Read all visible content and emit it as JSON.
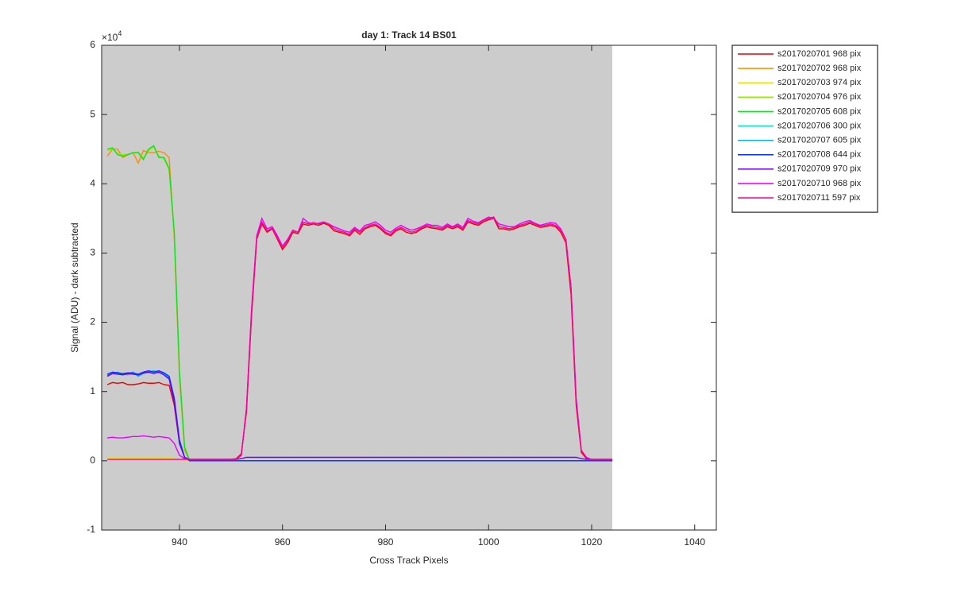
{
  "chart_data": {
    "type": "line",
    "title": "day 1: Track 14  BS01",
    "xlabel": "Cross Track Pixels",
    "ylabel": "Signal (ADU) - dark subtracted",
    "y_multiplier": {
      "base": "×10",
      "exponent": "4"
    },
    "xlim": [
      924.9,
      1044.2
    ],
    "ylim": [
      -1,
      6
    ],
    "xticks": [
      940,
      960,
      980,
      1000,
      1020,
      1040
    ],
    "yticks": [
      -1,
      0,
      1,
      2,
      3,
      4,
      5,
      6
    ],
    "legend": "northeastoutside",
    "x": [
      926,
      927,
      928,
      929,
      930,
      931,
      932,
      933,
      934,
      935,
      936,
      937,
      938,
      939,
      940,
      941,
      942,
      943,
      944,
      945,
      946,
      947,
      948,
      949,
      950,
      951,
      952,
      953,
      954,
      955,
      956,
      957,
      958,
      959,
      960,
      961,
      962,
      963,
      964,
      965,
      966,
      967,
      968,
      969,
      970,
      971,
      972,
      973,
      974,
      975,
      976,
      977,
      978,
      979,
      980,
      981,
      982,
      983,
      984,
      985,
      986,
      987,
      988,
      989,
      990,
      991,
      992,
      993,
      994,
      995,
      996,
      997,
      998,
      999,
      1000,
      1001,
      1002,
      1003,
      1004,
      1005,
      1006,
      1007,
      1008,
      1009,
      1010,
      1011,
      1012,
      1013,
      1014,
      1015,
      1016,
      1017,
      1018,
      1019,
      1020,
      1021,
      1022,
      1023,
      1024
    ],
    "series": [
      {
        "name": "s2017020701 968 pix",
        "color": "#ee0000",
        "values": [
          1.1,
          1.13,
          1.12,
          1.13,
          1.1,
          1.1,
          1.11,
          1.13,
          1.12,
          1.12,
          1.13,
          1.1,
          1.09,
          0.8,
          0.25,
          0.05,
          0.02,
          0.02,
          0.02,
          0.02,
          0.02,
          0.02,
          0.02,
          0.02,
          0.02,
          0.03,
          0.1,
          0.7,
          2.1,
          3.2,
          3.42,
          3.3,
          3.35,
          3.2,
          3.05,
          3.15,
          3.3,
          3.28,
          3.42,
          3.4,
          3.42,
          3.4,
          3.43,
          3.4,
          3.32,
          3.3,
          3.28,
          3.25,
          3.33,
          3.27,
          3.35,
          3.38,
          3.4,
          3.35,
          3.28,
          3.25,
          3.32,
          3.35,
          3.3,
          3.28,
          3.3,
          3.35,
          3.38,
          3.36,
          3.35,
          3.33,
          3.38,
          3.35,
          3.38,
          3.33,
          3.45,
          3.42,
          3.4,
          3.45,
          3.48,
          3.5,
          3.35,
          3.35,
          3.33,
          3.35,
          3.38,
          3.4,
          3.43,
          3.4,
          3.37,
          3.38,
          3.4,
          3.38,
          3.3,
          3.15,
          2.4,
          0.8,
          0.12,
          0.03,
          0.02,
          0.02,
          0.02,
          0.02,
          0.02
        ]
      },
      {
        "name": "s2017020702 968 pix",
        "color": "#ff8c00",
        "values": [
          4.4,
          4.5,
          4.5,
          4.38,
          4.42,
          4.45,
          4.3,
          4.48,
          4.45,
          4.45,
          4.47,
          4.45,
          4.38,
          3.2,
          1.2,
          0.15,
          0,
          0,
          0,
          0,
          0,
          0,
          0,
          0,
          0,
          0,
          0,
          0,
          0,
          0,
          0,
          0,
          0,
          0,
          0,
          0,
          0,
          0,
          0,
          0,
          0,
          0,
          0,
          0,
          0,
          0,
          0,
          0,
          0,
          0,
          0,
          0,
          0,
          0,
          0,
          0,
          0,
          0,
          0,
          0,
          0,
          0,
          0,
          0,
          0,
          0,
          0,
          0,
          0,
          0,
          0,
          0,
          0,
          0,
          0,
          0,
          0,
          0,
          0,
          0,
          0,
          0,
          0,
          0,
          0,
          0,
          0,
          0,
          0,
          0,
          0,
          0,
          0,
          0,
          0,
          0,
          0,
          0,
          0
        ]
      },
      {
        "name": "s2017020703 974 pix",
        "color": "#e6e600",
        "values": [
          0.04,
          0.04,
          0.04,
          0.04,
          0.04,
          0.04,
          0.04,
          0.04,
          0.04,
          0.04,
          0.04,
          0.04,
          0.04,
          0.03,
          0.01,
          0,
          0,
          0,
          0,
          0,
          0,
          0,
          0,
          0,
          0,
          0,
          0,
          0,
          0,
          0,
          0,
          0,
          0,
          0,
          0,
          0,
          0,
          0,
          0,
          0,
          0,
          0,
          0,
          0,
          0,
          0,
          0,
          0,
          0,
          0,
          0,
          0,
          0,
          0,
          0,
          0,
          0,
          0,
          0,
          0,
          0,
          0,
          0,
          0,
          0,
          0,
          0,
          0,
          0,
          0,
          0,
          0,
          0,
          0,
          0,
          0,
          0,
          0,
          0,
          0,
          0,
          0,
          0,
          0,
          0,
          0,
          0,
          0,
          0,
          0,
          0,
          0,
          0,
          0,
          0,
          0,
          0,
          0,
          0
        ]
      },
      {
        "name": "s2017020704 976 pix",
        "color": "#8cf000",
        "values": [
          4.48,
          4.5,
          4.44,
          4.42,
          4.43,
          4.44,
          4.46,
          4.37,
          4.48,
          4.53,
          4.4,
          4.36,
          4.2,
          3.25,
          1.25,
          0.18,
          0,
          0,
          0,
          0,
          0,
          0,
          0,
          0,
          0,
          0,
          0,
          0,
          0,
          0,
          0,
          0,
          0,
          0,
          0,
          0,
          0,
          0,
          0,
          0,
          0,
          0,
          0,
          0,
          0,
          0,
          0,
          0,
          0,
          0,
          0,
          0,
          0,
          0,
          0,
          0,
          0,
          0,
          0,
          0,
          0,
          0,
          0,
          0,
          0,
          0,
          0,
          0,
          0,
          0,
          0,
          0,
          0,
          0,
          0,
          0,
          0,
          0,
          0,
          0,
          0,
          0,
          0,
          0,
          0,
          0,
          0,
          0,
          0,
          0,
          0,
          0,
          0,
          0,
          0,
          0,
          0,
          0,
          0
        ]
      },
      {
        "name": "s2017020705 608 pix",
        "color": "#10e020",
        "values": [
          4.5,
          4.52,
          4.42,
          4.4,
          4.42,
          4.45,
          4.45,
          4.35,
          4.5,
          4.55,
          4.38,
          4.38,
          4.22,
          3.3,
          1.3,
          0.2,
          0,
          0,
          0,
          0,
          0,
          0,
          0,
          0,
          0,
          0,
          0,
          0,
          0,
          0,
          0,
          0,
          0,
          0,
          0,
          0,
          0,
          0,
          0,
          0,
          0,
          0,
          0,
          0,
          0,
          0,
          0,
          0,
          0,
          0,
          0,
          0,
          0,
          0,
          0,
          0,
          0,
          0,
          0,
          0,
          0,
          0,
          0,
          0,
          0,
          0,
          0,
          0,
          0,
          0,
          0,
          0,
          0,
          0,
          0,
          0,
          0,
          0,
          0,
          0,
          0,
          0,
          0,
          0,
          0,
          0,
          0,
          0,
          0,
          0,
          0,
          0,
          0,
          0,
          0,
          0,
          0,
          0,
          0
        ]
      },
      {
        "name": "s2017020706 300 pix",
        "color": "#00e6b0",
        "values": [
          1.24,
          1.27,
          1.26,
          1.25,
          1.24,
          1.27,
          1.23,
          1.28,
          1.27,
          1.3,
          1.28,
          1.25,
          1.2,
          0.9,
          0.25,
          0.04,
          0,
          0,
          0,
          0,
          0,
          0,
          0,
          0,
          0,
          0,
          0,
          0,
          0,
          0,
          0,
          0,
          0,
          0,
          0,
          0,
          0,
          0,
          0,
          0,
          0,
          0,
          0,
          0,
          0,
          0,
          0,
          0,
          0,
          0,
          0,
          0,
          0,
          0,
          0,
          0,
          0,
          0,
          0,
          0,
          0,
          0,
          0,
          0,
          0,
          0,
          0,
          0,
          0,
          0,
          0,
          0,
          0,
          0,
          0,
          0,
          0,
          0,
          0,
          0,
          0,
          0,
          0,
          0,
          0,
          0,
          0,
          0,
          0,
          0,
          0,
          0,
          0,
          0,
          0,
          0,
          0,
          0,
          0
        ]
      },
      {
        "name": "s2017020707 605 pix",
        "color": "#00b0ff",
        "values": [
          1.23,
          1.26,
          1.28,
          1.25,
          1.25,
          1.28,
          1.22,
          1.26,
          1.28,
          1.3,
          1.27,
          1.26,
          1.2,
          0.88,
          0.28,
          0.05,
          0,
          0,
          0,
          0,
          0,
          0,
          0,
          0,
          0,
          0,
          0,
          0,
          0,
          0,
          0,
          0,
          0,
          0,
          0,
          0,
          0,
          0,
          0,
          0,
          0,
          0,
          0,
          0,
          0,
          0,
          0,
          0,
          0,
          0,
          0,
          0,
          0,
          0,
          0,
          0,
          0,
          0,
          0,
          0,
          0,
          0,
          0,
          0,
          0,
          0,
          0,
          0,
          0,
          0,
          0,
          0,
          0,
          0,
          0,
          0,
          0,
          0,
          0,
          0,
          0,
          0,
          0,
          0,
          0,
          0,
          0,
          0,
          0,
          0,
          0,
          0,
          0,
          0,
          0,
          0,
          0,
          0,
          0
        ]
      },
      {
        "name": "s2017020708 644 pix",
        "color": "#0030ff",
        "values": [
          1.25,
          1.28,
          1.27,
          1.26,
          1.27,
          1.27,
          1.25,
          1.28,
          1.3,
          1.28,
          1.3,
          1.27,
          1.22,
          0.9,
          0.3,
          0.05,
          0,
          0,
          0,
          0,
          0,
          0,
          0,
          0,
          0,
          0,
          0,
          0,
          0,
          0,
          0,
          0,
          0,
          0,
          0,
          0,
          0,
          0,
          0,
          0,
          0,
          0,
          0,
          0,
          0,
          0,
          0,
          0,
          0,
          0,
          0,
          0,
          0,
          0,
          0,
          0,
          0,
          0,
          0,
          0,
          0,
          0,
          0,
          0,
          0,
          0,
          0,
          0,
          0,
          0,
          0,
          0,
          0,
          0,
          0,
          0,
          0,
          0,
          0,
          0,
          0,
          0,
          0,
          0,
          0,
          0,
          0,
          0,
          0,
          0,
          0,
          0,
          0,
          0,
          0,
          0,
          0,
          0,
          0
        ]
      },
      {
        "name": "s2017020709 970 pix",
        "color": "#6a00ff",
        "values": [
          1.22,
          1.26,
          1.25,
          1.24,
          1.26,
          1.25,
          1.24,
          1.27,
          1.28,
          1.26,
          1.28,
          1.24,
          1.18,
          0.85,
          0.25,
          0.05,
          0.02,
          0.02,
          0.02,
          0.02,
          0.02,
          0.02,
          0.02,
          0.02,
          0.02,
          0.02,
          0.03,
          0.05,
          0.05,
          0.05,
          0.05,
          0.05,
          0.05,
          0.05,
          0.05,
          0.05,
          0.05,
          0.05,
          0.05,
          0.05,
          0.05,
          0.05,
          0.05,
          0.05,
          0.05,
          0.05,
          0.05,
          0.05,
          0.05,
          0.05,
          0.05,
          0.05,
          0.05,
          0.05,
          0.05,
          0.05,
          0.05,
          0.05,
          0.05,
          0.05,
          0.05,
          0.05,
          0.05,
          0.05,
          0.05,
          0.05,
          0.05,
          0.05,
          0.05,
          0.05,
          0.05,
          0.05,
          0.05,
          0.05,
          0.05,
          0.05,
          0.05,
          0.05,
          0.05,
          0.05,
          0.05,
          0.05,
          0.05,
          0.05,
          0.05,
          0.05,
          0.05,
          0.05,
          0.05,
          0.05,
          0.05,
          0.05,
          0.03,
          0.02,
          0.02,
          0.02,
          0.02,
          0.02,
          0.02
        ]
      },
      {
        "name": "s2017020710 968 pix",
        "color": "#e600ff",
        "values": [
          0.33,
          0.34,
          0.33,
          0.33,
          0.34,
          0.35,
          0.35,
          0.36,
          0.35,
          0.34,
          0.35,
          0.34,
          0.33,
          0.25,
          0.08,
          0.03,
          0.02,
          0.02,
          0.02,
          0.02,
          0.02,
          0.02,
          0.02,
          0.02,
          0.02,
          0.02,
          0.08,
          0.75,
          2.2,
          3.25,
          3.5,
          3.35,
          3.38,
          3.25,
          3.1,
          3.2,
          3.33,
          3.3,
          3.5,
          3.44,
          3.42,
          3.43,
          3.45,
          3.42,
          3.38,
          3.35,
          3.32,
          3.3,
          3.37,
          3.32,
          3.4,
          3.42,
          3.45,
          3.4,
          3.33,
          3.3,
          3.36,
          3.4,
          3.36,
          3.33,
          3.35,
          3.38,
          3.42,
          3.4,
          3.4,
          3.37,
          3.42,
          3.38,
          3.42,
          3.37,
          3.5,
          3.46,
          3.44,
          3.48,
          3.52,
          3.5,
          3.42,
          3.4,
          3.38,
          3.38,
          3.42,
          3.45,
          3.47,
          3.43,
          3.4,
          3.42,
          3.44,
          3.43,
          3.35,
          3.2,
          2.5,
          0.9,
          0.15,
          0.05,
          0.02,
          0.02,
          0.02,
          0.02,
          0.02
        ]
      },
      {
        "name": "s2017020711 597 pix",
        "color": "#ff0096",
        "values": [
          0.02,
          0.02,
          0.02,
          0.02,
          0.02,
          0.02,
          0.02,
          0.02,
          0.02,
          0.02,
          0.02,
          0.02,
          0.02,
          0.02,
          0.02,
          0.02,
          0.02,
          0.02,
          0.02,
          0.02,
          0.02,
          0.02,
          0.02,
          0.02,
          0.02,
          0.02,
          0.08,
          0.75,
          2.15,
          3.22,
          3.45,
          3.32,
          3.36,
          3.22,
          3.08,
          3.18,
          3.32,
          3.3,
          3.45,
          3.42,
          3.44,
          3.42,
          3.44,
          3.42,
          3.35,
          3.32,
          3.3,
          3.27,
          3.35,
          3.3,
          3.37,
          3.4,
          3.42,
          3.37,
          3.3,
          3.27,
          3.34,
          3.37,
          3.33,
          3.3,
          3.32,
          3.37,
          3.4,
          3.38,
          3.37,
          3.35,
          3.4,
          3.37,
          3.4,
          3.35,
          3.47,
          3.44,
          3.42,
          3.47,
          3.5,
          3.52,
          3.38,
          3.37,
          3.35,
          3.37,
          3.4,
          3.42,
          3.45,
          3.42,
          3.39,
          3.4,
          3.42,
          3.4,
          3.33,
          3.2,
          2.5,
          0.85,
          0.15,
          0.04,
          0.02,
          0.02,
          0.02,
          0.02,
          0.02
        ]
      }
    ]
  }
}
